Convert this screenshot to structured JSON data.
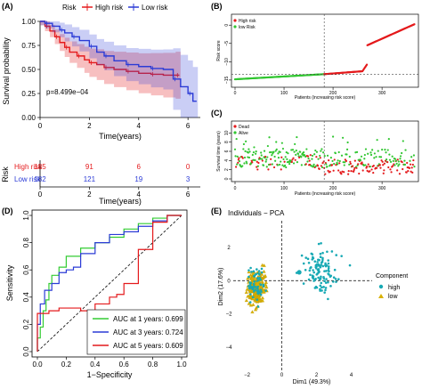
{
  "panels": {
    "a": "(A)",
    "b": "(B)",
    "c": "(C)",
    "d": "(D)",
    "e": "(E)"
  },
  "colors": {
    "high": "#e41a1c",
    "low": "#2b3bd6",
    "dead": "#e41a1c",
    "alive": "#31c631",
    "pca_high": "#17a9b4",
    "pca_low": "#d9b100",
    "auc1": "#33cc33",
    "auc3": "#2b3bd6",
    "auc5": "#e41a1c"
  },
  "km": {
    "legend_title": "Risk",
    "legend_high": "High risk",
    "legend_low": "Low risk",
    "pvalue": "p=8.499e−04",
    "ylabel": "Survival probability",
    "xlabel": "Time(years)",
    "y_ticks": [
      "0.00",
      "0.25",
      "0.50",
      "0.75",
      "1.00"
    ],
    "x_ticks": [
      "0",
      "2",
      "4",
      "6"
    ],
    "risk_table": {
      "side_label": "Risk",
      "row_high_label": "High risk",
      "row_low_label": "Low risk",
      "times": [
        "0",
        "2",
        "4",
        "6"
      ],
      "high": [
        "185",
        "91",
        "6",
        "0"
      ],
      "low": [
        "182",
        "121",
        "19",
        "3"
      ],
      "xlabel": "Time(years)",
      "x_ticks": [
        "0",
        "2",
        "4",
        "6"
      ]
    }
  },
  "chart_data": [
    {
      "panel": "A",
      "type": "line",
      "xlabel": "Time(years)",
      "ylabel": "Survival probability",
      "xlim": [
        0,
        6.5
      ],
      "ylim": [
        0,
        1
      ],
      "series": [
        {
          "name": "High risk",
          "x": [
            0,
            0.2,
            0.4,
            0.6,
            0.8,
            1.0,
            1.2,
            1.5,
            1.8,
            2.0,
            2.3,
            2.6,
            3.0,
            3.5,
            4.0,
            4.5,
            5.0,
            5.5
          ],
          "y": [
            1.0,
            0.95,
            0.9,
            0.84,
            0.78,
            0.73,
            0.68,
            0.64,
            0.6,
            0.57,
            0.55,
            0.52,
            0.5,
            0.48,
            0.46,
            0.45,
            0.44,
            0.44
          ]
        },
        {
          "name": "Low risk",
          "x": [
            0,
            0.2,
            0.5,
            0.8,
            1.0,
            1.3,
            1.6,
            2.0,
            2.3,
            2.6,
            3.0,
            3.5,
            4.0,
            4.5,
            5.0,
            5.4,
            5.7,
            6.0,
            6.2
          ],
          "y": [
            1.0,
            0.98,
            0.95,
            0.91,
            0.88,
            0.84,
            0.8,
            0.74,
            0.68,
            0.64,
            0.59,
            0.55,
            0.53,
            0.51,
            0.5,
            0.4,
            0.32,
            0.25,
            0.17
          ]
        }
      ]
    },
    {
      "panel": "B",
      "type": "scatter",
      "xlabel": "Patients (increasing risk score)",
      "ylabel": "Risk score",
      "legend": [
        "High risk",
        "low Risk"
      ],
      "xlim": [
        0,
        367
      ],
      "ylim": [
        -16,
        2
      ],
      "y_ticks": [
        -15,
        -10,
        -5,
        0
      ],
      "x_ticks": [
        0,
        100,
        200,
        300
      ],
      "cutoff_index": 182,
      "cutoff_score": -13.5
    },
    {
      "panel": "C",
      "type": "scatter",
      "xlabel": "Patients (increasing risk score)",
      "ylabel": "Survival time (years)",
      "legend": [
        "Dead",
        "Alive"
      ],
      "xlim": [
        0,
        367
      ],
      "ylim": [
        0,
        12
      ],
      "y_ticks": [
        0,
        2,
        4,
        6,
        8,
        10
      ],
      "x_ticks": [
        0,
        100,
        200,
        300
      ],
      "cutoff_index": 182
    },
    {
      "panel": "D",
      "type": "line",
      "xlabel": "1−Specificity",
      "ylabel": "Sensitivity",
      "xlim": [
        0,
        1
      ],
      "ylim": [
        0,
        1
      ],
      "ticks": [
        "0.0",
        "0.2",
        "0.4",
        "0.6",
        "0.8",
        "1.0"
      ],
      "series": [
        {
          "name": "AUC at 1 years: 0.699",
          "x": [
            0,
            0.02,
            0.04,
            0.06,
            0.08,
            0.1,
            0.15,
            0.2,
            0.3,
            0.4,
            0.5,
            0.6,
            0.7,
            0.8,
            0.9,
            1.0
          ],
          "y": [
            0,
            0.1,
            0.18,
            0.3,
            0.38,
            0.5,
            0.56,
            0.62,
            0.7,
            0.76,
            0.8,
            0.84,
            0.9,
            0.94,
            0.98,
            1.0
          ]
        },
        {
          "name": "AUC at 3 years: 0.724",
          "x": [
            0,
            0.02,
            0.05,
            0.1,
            0.15,
            0.2,
            0.25,
            0.3,
            0.4,
            0.5,
            0.6,
            0.7,
            0.8,
            0.9,
            1.0
          ],
          "y": [
            0,
            0.2,
            0.35,
            0.45,
            0.5,
            0.58,
            0.6,
            0.62,
            0.72,
            0.8,
            0.86,
            0.88,
            0.92,
            0.96,
            1.0
          ]
        },
        {
          "name": "AUC at 5 years: 0.609",
          "x": [
            0,
            0.08,
            0.1,
            0.15,
            0.2,
            0.3,
            0.4,
            0.5,
            0.55,
            0.6,
            0.7,
            0.8,
            0.9,
            1.0
          ],
          "y": [
            0,
            0.28,
            0.3,
            0.3,
            0.32,
            0.32,
            0.3,
            0.35,
            0.4,
            0.42,
            0.5,
            0.75,
            0.95,
            1.0
          ]
        }
      ],
      "legend": [
        "AUC at 1 years: 0.699",
        "AUC at 3 years: 0.724",
        "AUC at 5 years: 0.609"
      ]
    },
    {
      "panel": "E",
      "type": "scatter",
      "title": "Individuals − PCA",
      "xlabel": "Dim1 (49.3%)",
      "ylabel": "Dim2 (17.6%)",
      "xlim": [
        -2.8,
        5.2
      ],
      "ylim": [
        -5.5,
        3.6
      ],
      "x_ticks": [
        -2,
        0,
        2,
        4
      ],
      "y_ticks": [
        -4,
        -2,
        0,
        2
      ],
      "legend_title": "Component",
      "legend": [
        "high",
        "low"
      ],
      "series": [
        {
          "name": "high",
          "cluster_center": [
            2.2,
            0.6
          ]
        },
        {
          "name": "low",
          "cluster_center": [
            -1.4,
            -0.4
          ]
        }
      ]
    }
  ]
}
